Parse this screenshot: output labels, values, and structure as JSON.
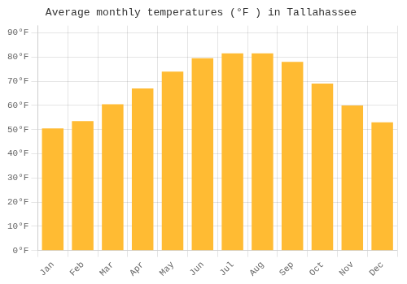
{
  "chart_data": {
    "type": "bar",
    "title": "Average monthly temperatures (°F ) in Tallahassee",
    "categories": [
      "Jan",
      "Feb",
      "Mar",
      "Apr",
      "May",
      "Jun",
      "Jul",
      "Aug",
      "Sep",
      "Oct",
      "Nov",
      "Dec"
    ],
    "values": [
      50.5,
      53.5,
      60.5,
      67.0,
      74.0,
      79.5,
      81.5,
      81.5,
      78.0,
      69.0,
      60.0,
      53.0
    ],
    "color": "#FFBB33",
    "ylim": [
      0,
      93
    ],
    "yticks": [
      {
        "value": 0,
        "label": "0°F"
      },
      {
        "value": 10,
        "label": "10°F"
      },
      {
        "value": 20,
        "label": "20°F"
      },
      {
        "value": 30,
        "label": "30°F"
      },
      {
        "value": 40,
        "label": "40°F"
      },
      {
        "value": 50,
        "label": "50°F"
      },
      {
        "value": 60,
        "label": "60°F"
      },
      {
        "value": 70,
        "label": "70°F"
      },
      {
        "value": 80,
        "label": "80°F"
      },
      {
        "value": 90,
        "label": "90°F"
      }
    ],
    "grid": true
  }
}
